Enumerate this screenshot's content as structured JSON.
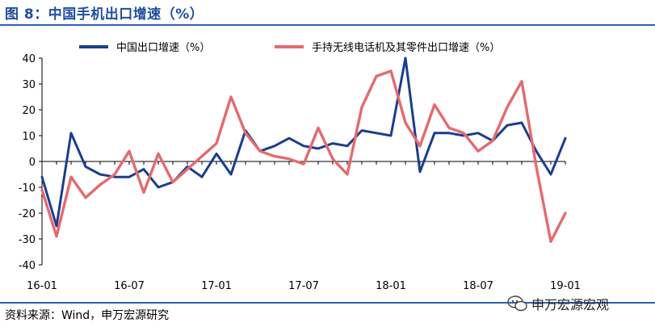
{
  "figure_title": "图 8：中国手机出口增速（%）",
  "source": "资料来源：Wind，申万宏源研究",
  "watermark": "申万宏源宏观",
  "colors": {
    "series1": "#1b3d8f",
    "series2": "#e46a6e",
    "accent": "#2f5fb3"
  },
  "chart_data": {
    "type": "line",
    "x": [
      "16-01",
      "16-02",
      "16-03",
      "16-04",
      "16-05",
      "16-06",
      "16-07",
      "16-08",
      "16-09",
      "16-10",
      "16-11",
      "16-12",
      "17-01",
      "17-02",
      "17-03",
      "17-04",
      "17-05",
      "17-06",
      "17-07",
      "17-08",
      "17-09",
      "17-10",
      "17-11",
      "17-12",
      "18-01",
      "18-02",
      "18-03",
      "18-04",
      "18-05",
      "18-06",
      "18-07",
      "18-08",
      "18-09",
      "18-10",
      "18-11",
      "18-12",
      "19-01"
    ],
    "x_tick_labels": [
      "16-01",
      "16-07",
      "17-01",
      "17-07",
      "18-01",
      "18-07",
      "19-01"
    ],
    "ylim": [
      -40,
      40
    ],
    "y_ticks": [
      -40,
      -30,
      -20,
      -10,
      0,
      10,
      20,
      30,
      40
    ],
    "legend_position": "top",
    "grid": false,
    "series": [
      {
        "name": "中国出口增速（%）",
        "values": [
          -6,
          -25,
          11,
          -2,
          -5,
          -6,
          -6,
          -3,
          -10,
          -8,
          -2,
          -6,
          3,
          -5,
          12,
          4,
          6,
          9,
          6,
          5,
          7,
          6,
          12,
          11,
          10,
          40,
          -4,
          11,
          11,
          10,
          11,
          8,
          14,
          15,
          4,
          -5,
          9
        ]
      },
      {
        "name": "手持无线电话机及其零件出口增速（%）",
        "values": [
          -11,
          -29,
          -6,
          -14,
          -9,
          -5,
          4,
          -12,
          3,
          -8,
          -3,
          2,
          7,
          25,
          11,
          4,
          2,
          1,
          -1,
          13,
          1,
          -5,
          21,
          33,
          35,
          15,
          6,
          22,
          13,
          11,
          4,
          8,
          21,
          31,
          -2,
          -31,
          -20
        ]
      }
    ]
  }
}
